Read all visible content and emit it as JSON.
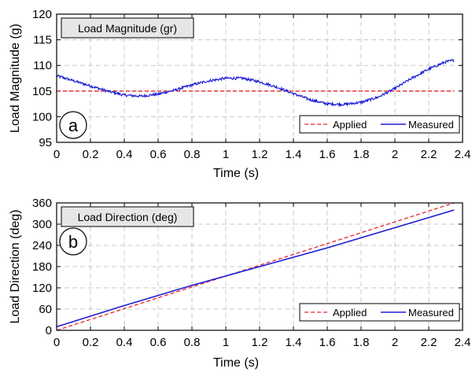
{
  "chart_data": [
    {
      "type": "line",
      "title_box": "Load Magnitude (gr)",
      "panel_label": "a",
      "xlabel": "Time (s)",
      "ylabel": "Load Magnitude (g)",
      "xlim": [
        0,
        2.4
      ],
      "ylim": [
        95,
        120
      ],
      "xticks": [
        0,
        0.2,
        0.4,
        0.6,
        0.8,
        1,
        1.2,
        1.4,
        1.6,
        1.8,
        2,
        2.2,
        2.4
      ],
      "yticks": [
        95,
        100,
        105,
        110,
        115,
        120
      ],
      "grid": true,
      "legend_position": "bottom-right",
      "series": [
        {
          "name": "Applied",
          "style": "dashed",
          "color": "#e8262a",
          "x": [
            0,
            2.35
          ],
          "y": [
            105,
            105
          ]
        },
        {
          "name": "Measured",
          "style": "solid",
          "color": "#1f1fd6",
          "x": [
            0,
            0.1,
            0.2,
            0.3,
            0.4,
            0.5,
            0.6,
            0.7,
            0.8,
            0.9,
            1.0,
            1.1,
            1.2,
            1.3,
            1.4,
            1.5,
            1.6,
            1.7,
            1.8,
            1.9,
            2.0,
            2.1,
            2.2,
            2.3,
            2.35
          ],
          "y": [
            108,
            107,
            106,
            105,
            104.2,
            104,
            104.4,
            105.2,
            106.2,
            107,
            107.5,
            107.5,
            106.8,
            105.8,
            104.5,
            103.3,
            102.5,
            102.4,
            102.8,
            103.8,
            105.5,
            107.5,
            109.3,
            110.7,
            111
          ]
        }
      ]
    },
    {
      "type": "line",
      "title_box": "Load Direction (deg)",
      "panel_label": "b",
      "xlabel": "Time (s)",
      "ylabel": "Load Direction (deg)",
      "xlim": [
        0,
        2.4
      ],
      "ylim": [
        0,
        360
      ],
      "xticks": [
        0,
        0.2,
        0.4,
        0.6,
        0.8,
        1,
        1.2,
        1.4,
        1.6,
        1.8,
        2,
        2.2,
        2.4
      ],
      "yticks": [
        0,
        60,
        120,
        180,
        240,
        300,
        360
      ],
      "grid": true,
      "legend_position": "bottom-right",
      "series": [
        {
          "name": "Applied",
          "style": "dashed",
          "color": "#e8262a",
          "x": [
            0,
            2.35
          ],
          "y": [
            0,
            360
          ]
        },
        {
          "name": "Measured",
          "style": "solid",
          "color": "#1f1fd6",
          "x": [
            0,
            0.4,
            0.8,
            1.2,
            1.6,
            2.0,
            2.35
          ],
          "y": [
            10,
            70,
            127,
            180,
            233,
            290,
            340
          ]
        }
      ]
    }
  ]
}
